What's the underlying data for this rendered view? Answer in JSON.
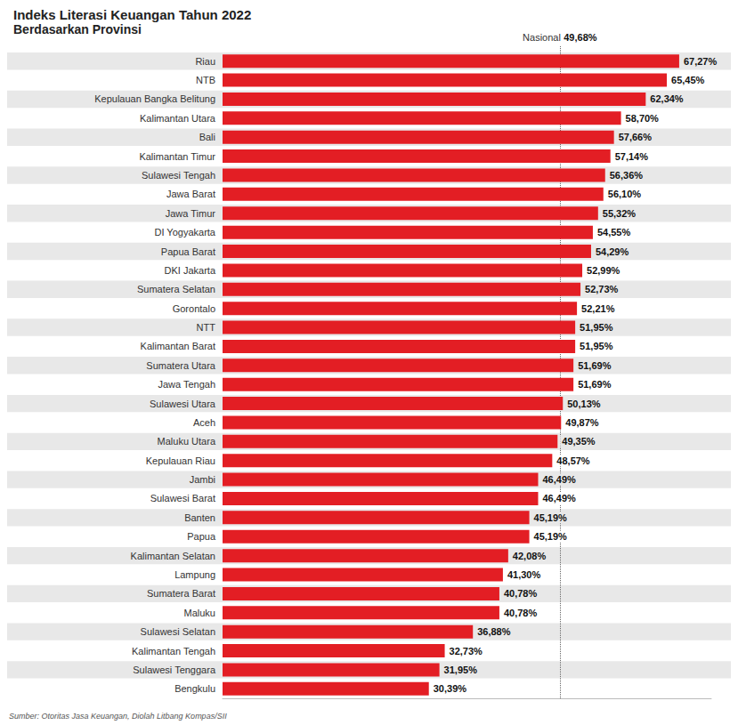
{
  "chart_data": {
    "type": "bar",
    "orientation": "horizontal",
    "title": "Indeks Literasi Keuangan Tahun 2022",
    "subtitle": "Berdasarkan Provinsi",
    "source": "Sumber: Otoritas Jasa Keuangan, Diolah Litbang Kompas/SII",
    "categories": [
      "Riau",
      "NTB",
      "Kepulauan Bangka Belitung",
      "Kalimantan Utara",
      "Bali",
      "Kalimantan Timur",
      "Sulawesi Tengah",
      "Jawa Barat",
      "Jawa Timur",
      "DI Yogyakarta",
      "Papua Barat",
      "DKI Jakarta",
      "Sumatera Selatan",
      "Gorontalo",
      "NTT",
      "Kalimantan Barat",
      "Sumatera Utara",
      "Jawa Tengah",
      "Sulawesi Utara",
      "Aceh",
      "Maluku Utara",
      "Kepulauan Riau",
      "Jambi",
      "Sulawesi Barat",
      "Banten",
      "Papua",
      "Kalimantan Selatan",
      "Lampung",
      "Sumatera Barat",
      "Maluku",
      "Sulawesi Selatan",
      "Kalimantan Tengah",
      "Sulawesi Tenggara",
      "Bengkulu"
    ],
    "values": [
      67.27,
      65.45,
      62.34,
      58.7,
      57.66,
      57.14,
      56.36,
      56.1,
      55.32,
      54.55,
      54.29,
      52.99,
      52.73,
      52.21,
      51.95,
      51.95,
      51.69,
      51.69,
      50.13,
      49.87,
      49.35,
      48.57,
      46.49,
      46.49,
      45.19,
      45.19,
      42.08,
      41.3,
      40.78,
      40.78,
      36.88,
      32.73,
      31.95,
      30.39
    ],
    "value_labels": [
      "67,27%",
      "65,45%",
      "62,34%",
      "58,70%",
      "57,66%",
      "57,14%",
      "56,36%",
      "56,10%",
      "55,32%",
      "54,55%",
      "54,29%",
      "52,99%",
      "52,73%",
      "52,21%",
      "51,95%",
      "51,95%",
      "51,69%",
      "51,69%",
      "50,13%",
      "49,87%",
      "49,35%",
      "48,57%",
      "46,49%",
      "46,49%",
      "45,19%",
      "45,19%",
      "42,08%",
      "41,30%",
      "40,78%",
      "40,78%",
      "36,88%",
      "32,73%",
      "31,95%",
      "30,39%"
    ],
    "color": "#e31e24",
    "xlim": [
      0,
      72
    ],
    "data_labels": true,
    "tick_labels": "y",
    "grid": false,
    "annotations": [
      {
        "text": "Nasional",
        "value": 49.68,
        "value_label": "49,68%"
      }
    ]
  }
}
